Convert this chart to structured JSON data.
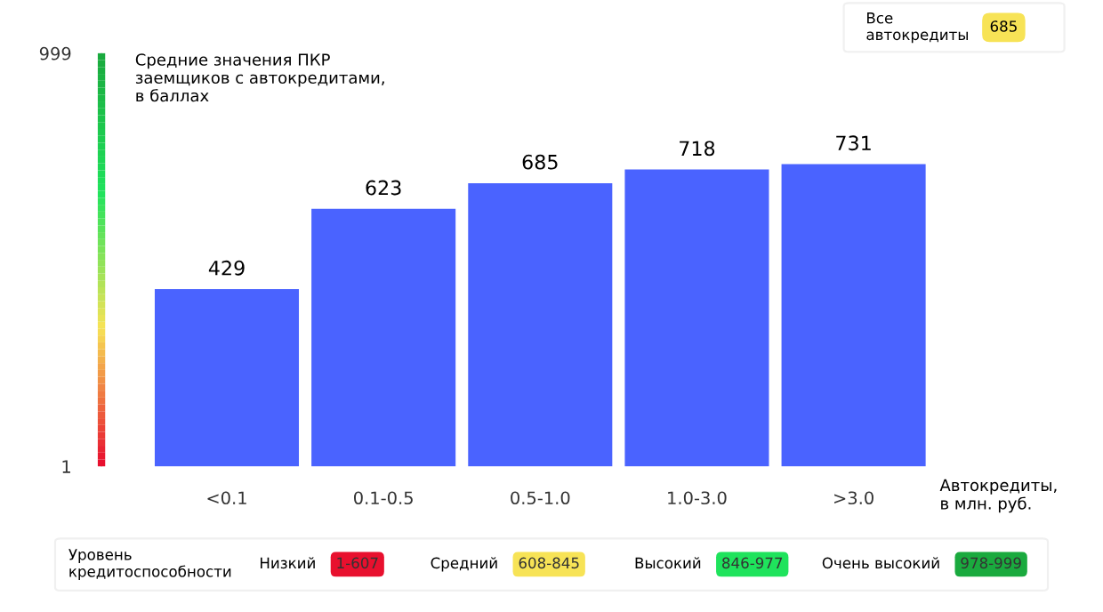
{
  "chart_data": {
    "type": "bar",
    "title": "Средние значения ПКР\nзаемщиков с автокредитами,\nв баллах",
    "xlabel": "Автокредиты,\nв млн. руб.",
    "categories": [
      "<0.1",
      "0.1-0.5",
      "0.5-1.0",
      "1.0-3.0",
      ">3.0"
    ],
    "values": [
      429,
      623,
      685,
      718,
      731
    ],
    "color": "#4a63ff",
    "ylim": [
      1,
      999
    ],
    "yticks": [
      1,
      999
    ],
    "grid": false,
    "data_labels": true,
    "legend_title": "Уровень\nкредитоспособности",
    "annotations": [
      "Все\nавтокредиты",
      "685",
      "Низкий",
      "1-607",
      "Средний",
      "608-845",
      "Высокий",
      "846-977",
      "Очень высокий",
      "978-999"
    ]
  }
}
